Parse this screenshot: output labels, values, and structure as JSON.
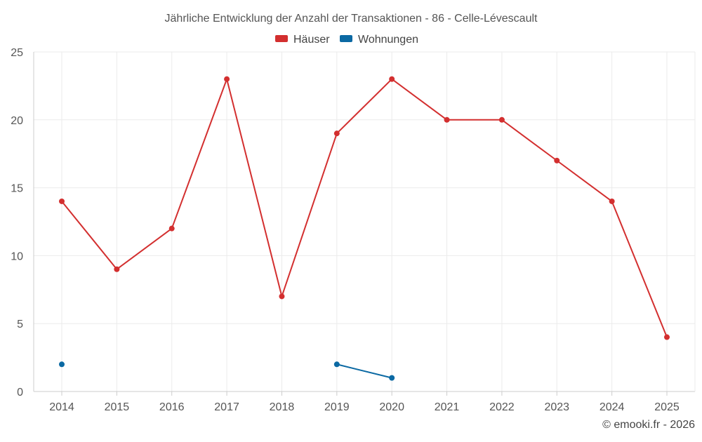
{
  "chart_data": {
    "type": "line",
    "title": "Jährliche Entwicklung der Anzahl der Transaktionen - 86 - Celle-Lévescault",
    "categories": [
      "2014",
      "2015",
      "2016",
      "2017",
      "2018",
      "2019",
      "2020",
      "2021",
      "2022",
      "2023",
      "2024",
      "2025"
    ],
    "series": [
      {
        "name": "Häuser",
        "color": "#d32f2f",
        "values": [
          14,
          9,
          12,
          23,
          7,
          19,
          23,
          20,
          20,
          17,
          14,
          4
        ]
      },
      {
        "name": "Wohnungen",
        "color": "#0b69a3",
        "values": [
          2,
          null,
          null,
          null,
          null,
          2,
          1,
          null,
          null,
          null,
          null,
          null
        ]
      }
    ],
    "ylim": [
      0,
      25
    ],
    "yticks": [
      0,
      5,
      10,
      15,
      20,
      25
    ],
    "xlabel": "",
    "ylabel": "",
    "grid": true,
    "legend": "top-center"
  },
  "credit": "© emooki.fr - 2026"
}
